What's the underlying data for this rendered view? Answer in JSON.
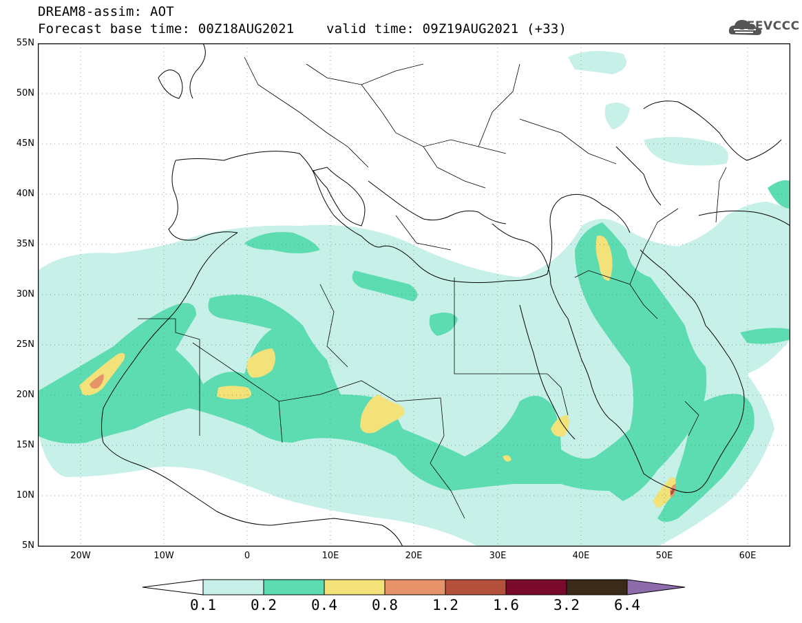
{
  "title": {
    "line1": "DREAM8-assim: AOT",
    "line2": "Forecast base time: 00Z18AUG2021    valid time: 09Z19AUG2021 (+33)"
  },
  "logo": {
    "text": "SEEVCCC",
    "icon": "cloud-icon"
  },
  "axes": {
    "lat_labels": [
      "55N",
      "50N",
      "45N",
      "40N",
      "35N",
      "30N",
      "25N",
      "20N",
      "15N",
      "10N",
      "5N"
    ],
    "lon_labels": [
      "20W",
      "10W",
      "0",
      "10E",
      "20E",
      "30E",
      "40E",
      "50E",
      "60E"
    ]
  },
  "colorbar": {
    "labels": [
      "0.1",
      "0.2",
      "0.4",
      "0.8",
      "1.2",
      "1.6",
      "3.2",
      "6.4"
    ],
    "colors": [
      "#ffffff",
      "#c6f0e8",
      "#5cdcb0",
      "#f3e27a",
      "#e7936a",
      "#b5503c",
      "#7a0a2c",
      "#3a2a17",
      "#8e6bab"
    ]
  },
  "colors": {
    "level_0_2": "#c6f0e8",
    "level_0_4": "#5cdcb0",
    "level_0_8": "#f3e27a",
    "level_1_2": "#e7936a",
    "level_1_6": "#b5503c"
  }
}
